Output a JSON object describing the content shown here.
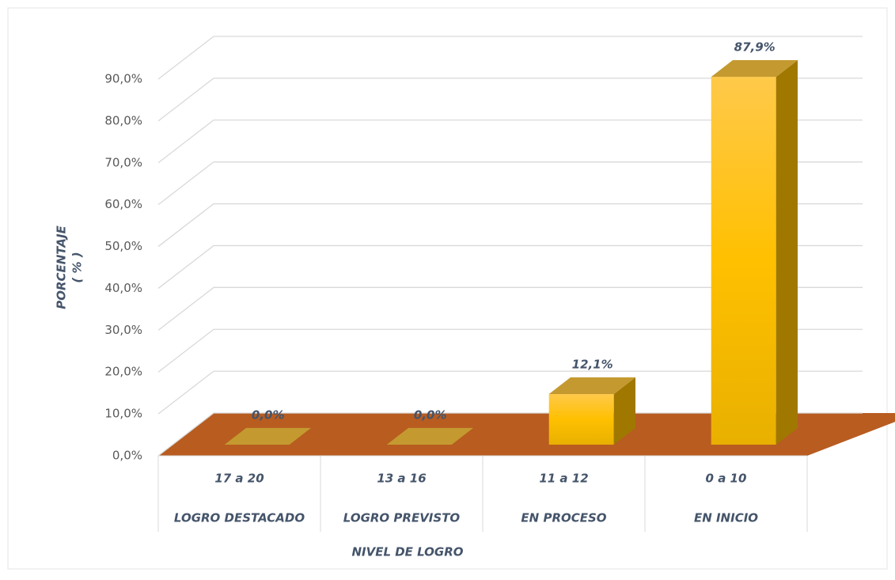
{
  "chart_data": {
    "type": "bar3d",
    "categories": [
      [
        "17 a 20",
        "LOGRO DESTACADO"
      ],
      [
        "13 a 16",
        "LOGRO PREVISTO"
      ],
      [
        "11 a 12",
        "EN PROCESO"
      ],
      [
        "0 a 10",
        "EN INICIO"
      ]
    ],
    "values": [
      0,
      0,
      12.1,
      87.9
    ],
    "value_labels": [
      "0,0%",
      "0,0%",
      "12,1%",
      "87,9%"
    ],
    "ylim": [
      0,
      90
    ],
    "yticks": [
      {
        "value": 0,
        "label": "0,0%"
      },
      {
        "value": 10,
        "label": "10,0%"
      },
      {
        "value": 20,
        "label": "20,0%"
      },
      {
        "value": 30,
        "label": "30,0%"
      },
      {
        "value": 40,
        "label": "40,0%"
      },
      {
        "value": 50,
        "label": "50,0%"
      },
      {
        "value": 60,
        "label": "60,0%"
      },
      {
        "value": 70,
        "label": "70,0%"
      },
      {
        "value": 80,
        "label": "80,0%"
      },
      {
        "value": 90,
        "label": "90,0%"
      }
    ],
    "y_label": [
      "PORCENTAJE",
      "( % )"
    ],
    "x_label": "NIVEL DE LOGRO",
    "grid": true,
    "colors": {
      "front": "#ffc000",
      "side": "#a07800",
      "top": "#c49a30",
      "floor": "#b85c20"
    }
  }
}
